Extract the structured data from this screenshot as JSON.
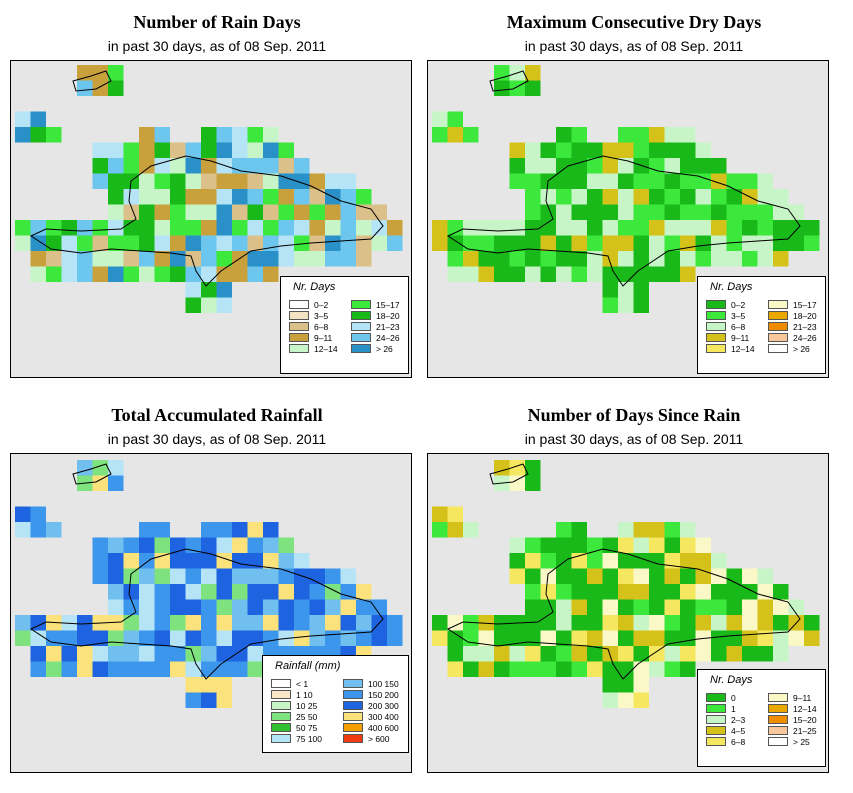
{
  "panels": [
    {
      "title": "Number of Rain Days",
      "subtitle": "in past 30 days, as of  08 Sep. 2011",
      "legend": {
        "title": "Nr. Days",
        "items": [
          {
            "label": "0–2",
            "color": "#ffffff"
          },
          {
            "label": "3–5",
            "color": "#f3e3c3"
          },
          {
            "label": "6–8",
            "color": "#dcc08a"
          },
          {
            "label": "9–11",
            "color": "#c9a13c"
          },
          {
            "label": "12–14",
            "color": "#c8f5c8"
          },
          {
            "label": "15–17",
            "color": "#3ce83c"
          },
          {
            "label": "18–20",
            "color": "#1ab91a"
          },
          {
            "label": "21–23",
            "color": "#b4e4f6"
          },
          {
            "label": "24–26",
            "color": "#6cc6ee"
          },
          {
            "label": "> 26",
            "color": "#2a90c8"
          }
        ]
      }
    },
    {
      "title": "Maximum Consecutive Dry Days",
      "subtitle": "in past 30 days, as of  08 Sep. 2011",
      "legend": {
        "title": "Nr. Days",
        "items": [
          {
            "label": "0–2",
            "color": "#1ab91a"
          },
          {
            "label": "3–5",
            "color": "#3ce83c"
          },
          {
            "label": "6–8",
            "color": "#c8f5c8"
          },
          {
            "label": "9–11",
            "color": "#d4c21a"
          },
          {
            "label": "12–14",
            "color": "#f5e860"
          },
          {
            "label": "15–17",
            "color": "#fbf8c8"
          },
          {
            "label": "18–20",
            "color": "#e8a800"
          },
          {
            "label": "21–23",
            "color": "#f08c00"
          },
          {
            "label": "24–26",
            "color": "#f8c89c"
          },
          {
            "label": "> 26",
            "color": "#ffffff"
          }
        ]
      }
    },
    {
      "title": "Total Accumulated Rainfall",
      "subtitle": "in past 30 days, as of  08 Sep. 2011",
      "legend": {
        "title": "Rainfall (mm)",
        "items": [
          {
            "label": "< 1",
            "color": "#ffffff"
          },
          {
            "label": "1   10",
            "color": "#fbe6c8"
          },
          {
            "label": "10   25",
            "color": "#c8f5c8"
          },
          {
            "label": "25   50",
            "color": "#7ee27e"
          },
          {
            "label": "50   75",
            "color": "#30c030"
          },
          {
            "label": "75   100",
            "color": "#b4e4f6"
          },
          {
            "label": "100   150",
            "color": "#70bfef"
          },
          {
            "label": "150   200",
            "color": "#3c96ec"
          },
          {
            "label": "200   300",
            "color": "#1e64e0"
          },
          {
            "label": "300   400",
            "color": "#fbe27a"
          },
          {
            "label": "400   600",
            "color": "#f5a000"
          },
          {
            "label": "> 600",
            "color": "#f03a10"
          }
        ]
      }
    },
    {
      "title": "Number of Days Since Rain",
      "subtitle": "in past 30 days, as of  08 Sep. 2011",
      "legend": {
        "title": "Nr. Days",
        "items": [
          {
            "label": "0",
            "color": "#1ab91a"
          },
          {
            "label": "1",
            "color": "#3ce83c"
          },
          {
            "label": "2–3",
            "color": "#c8f5c8"
          },
          {
            "label": "4–5",
            "color": "#d4c21a"
          },
          {
            "label": "6–8",
            "color": "#f5e860"
          },
          {
            "label": "9–11",
            "color": "#fbf8c8"
          },
          {
            "label": "12–14",
            "color": "#e8a800"
          },
          {
            "label": "15–20",
            "color": "#f08c00"
          },
          {
            "label": "21–25",
            "color": "#f8c89c"
          },
          {
            "label": "> 25",
            "color": "#ffffff"
          }
        ]
      }
    }
  ]
}
